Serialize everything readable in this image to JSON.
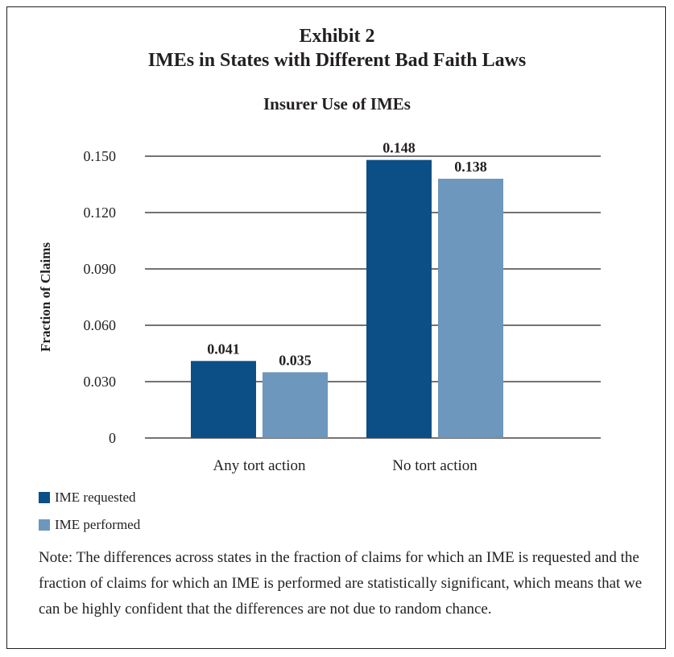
{
  "exhibit": {
    "title_line1": "Exhibit 2",
    "title_line2": "IMEs in States with Different Bad Faith Laws"
  },
  "chart_data": {
    "type": "bar",
    "title": "Insurer Use of IMEs",
    "xlabel": "",
    "ylabel": "Fraction of Claims",
    "ylim": [
      0,
      0.15
    ],
    "yticks": [
      "0",
      "0.030",
      "0.060",
      "0.090",
      "0.120",
      "0.150"
    ],
    "categories": [
      "Any tort action",
      "No tort action"
    ],
    "series": [
      {
        "name": "IME requested",
        "values": [
          0.041,
          0.148
        ],
        "labels": [
          "0.041",
          "0.148"
        ],
        "color": "#0b4f86"
      },
      {
        "name": "IME performed",
        "values": [
          0.035,
          0.138
        ],
        "labels": [
          "0.035",
          "0.138"
        ],
        "color": "#6d97bd"
      }
    ],
    "grid": true,
    "legend": "bottom-left"
  },
  "note": "Note: The differences across states in the fraction of claims for which an IME is requested and the fraction of claims for which an IME is performed are statistically significant, which means that we can be highly confident that the differences are not due to random chance."
}
